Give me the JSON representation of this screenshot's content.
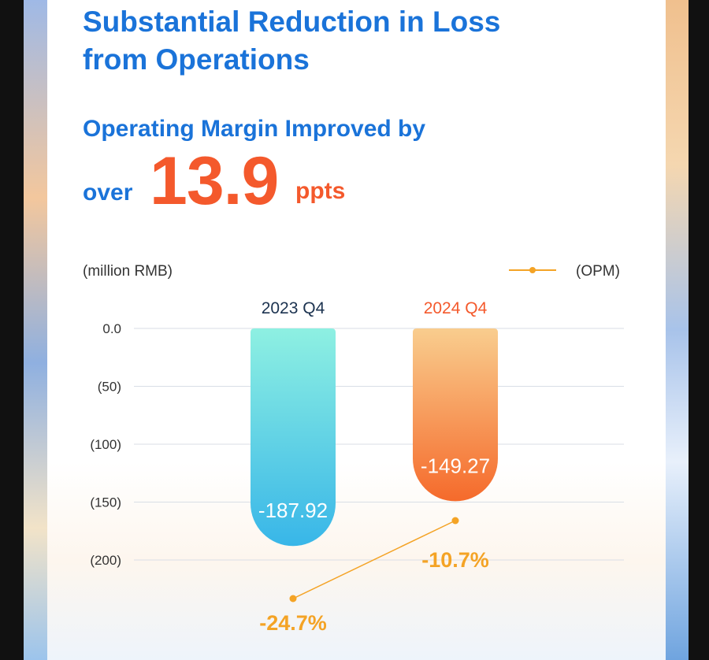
{
  "headline": {
    "title": "Substantial Reduction in Loss from Operations",
    "subtitle": "Operating Margin Improved by",
    "prefix": "over",
    "value": "13.9",
    "unit": "ppts"
  },
  "colors": {
    "blue": "#1a73d9",
    "orange": "#f4592c",
    "opm_line": "#f4a325",
    "bar_2023_top": "#8ef0e2",
    "bar_2023_bottom": "#38b6e8",
    "bar_2024_top": "#f9cd8e",
    "bar_2024_bottom": "#f56a2b"
  },
  "chart_data": {
    "type": "bar",
    "unit_label": "(million RMB)",
    "categories": [
      "2023 Q4",
      "2024 Q4"
    ],
    "category_colors": [
      "#1c3350",
      "#f4592c"
    ],
    "values": [
      -187.92,
      -149.27
    ],
    "value_labels": [
      "-187.92",
      "-149.27"
    ],
    "y_ticks": [
      0,
      -50,
      -100,
      -150,
      -200
    ],
    "y_tick_labels": [
      "0.0",
      "(50)",
      "(100)",
      "(150)",
      "(200)"
    ],
    "ylim": [
      -200,
      0
    ],
    "grid": true,
    "legend": {
      "label": "(OPM)",
      "position": "top-right"
    },
    "line_series": {
      "name": "OPM",
      "values_percent": [
        -24.7,
        -10.7
      ],
      "labels": [
        "-24.7%",
        "-10.7%"
      ]
    }
  }
}
